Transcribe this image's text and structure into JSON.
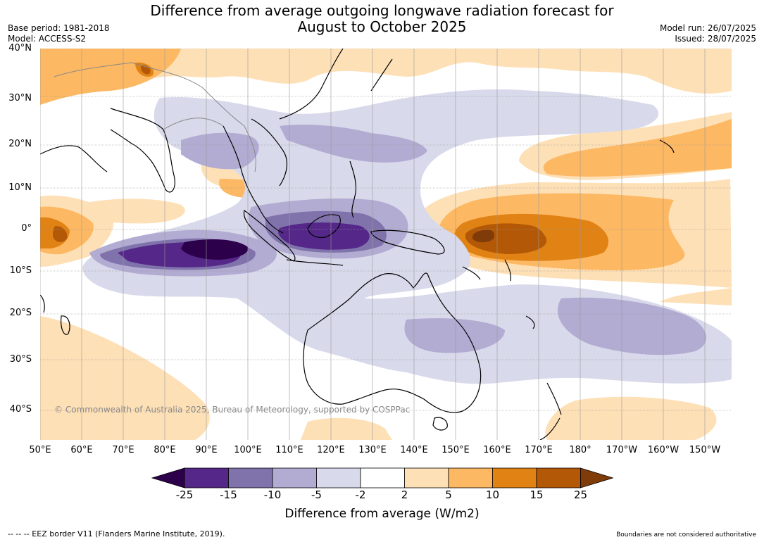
{
  "title_line1": "Difference from average outgoing longwave radiation forecast for",
  "title_line2": "August to October 2025",
  "base_period": "Base period: 1981-2018",
  "model": "Model: ACCESS-S2",
  "model_run": "Model run: 26/07/2025",
  "issued": "Issued: 28/07/2025",
  "copyright": "© Commonwealth of Australia 2025, Bureau of Meteorology, supported by COSPPac",
  "lat_labels": [
    "40°N",
    "30°N",
    "20°N",
    "10°N",
    "0°",
    "10°S",
    "20°S",
    "30°S",
    "40°S"
  ],
  "lon_labels": [
    "50°E",
    "60°E",
    "70°E",
    "80°E",
    "90°E",
    "100°E",
    "110°E",
    "120°E",
    "130°E",
    "140°E",
    "150°E",
    "160°E",
    "170°E",
    "180°",
    "170°W",
    "160°W",
    "150°W"
  ],
  "colorbar": {
    "ticks": [
      "-25",
      "-15",
      "-10",
      "-5",
      "-2",
      "2",
      "5",
      "10",
      "15",
      "25"
    ],
    "colors": {
      "under": "#2d004b",
      "bins": [
        "#542788",
        "#8073ac",
        "#b2abd2",
        "#d8daeb",
        "#ffffff",
        "#fee0b6",
        "#fdb863",
        "#e08214",
        "#b35806"
      ],
      "over": "#7f3b08"
    },
    "label": "Difference from average (W/m2)"
  },
  "footer_left": "--  --  -- EEZ border V11 (Flanders Marine Institute, 2019).",
  "footer_right": "Boundaries are not considered authoritative"
}
